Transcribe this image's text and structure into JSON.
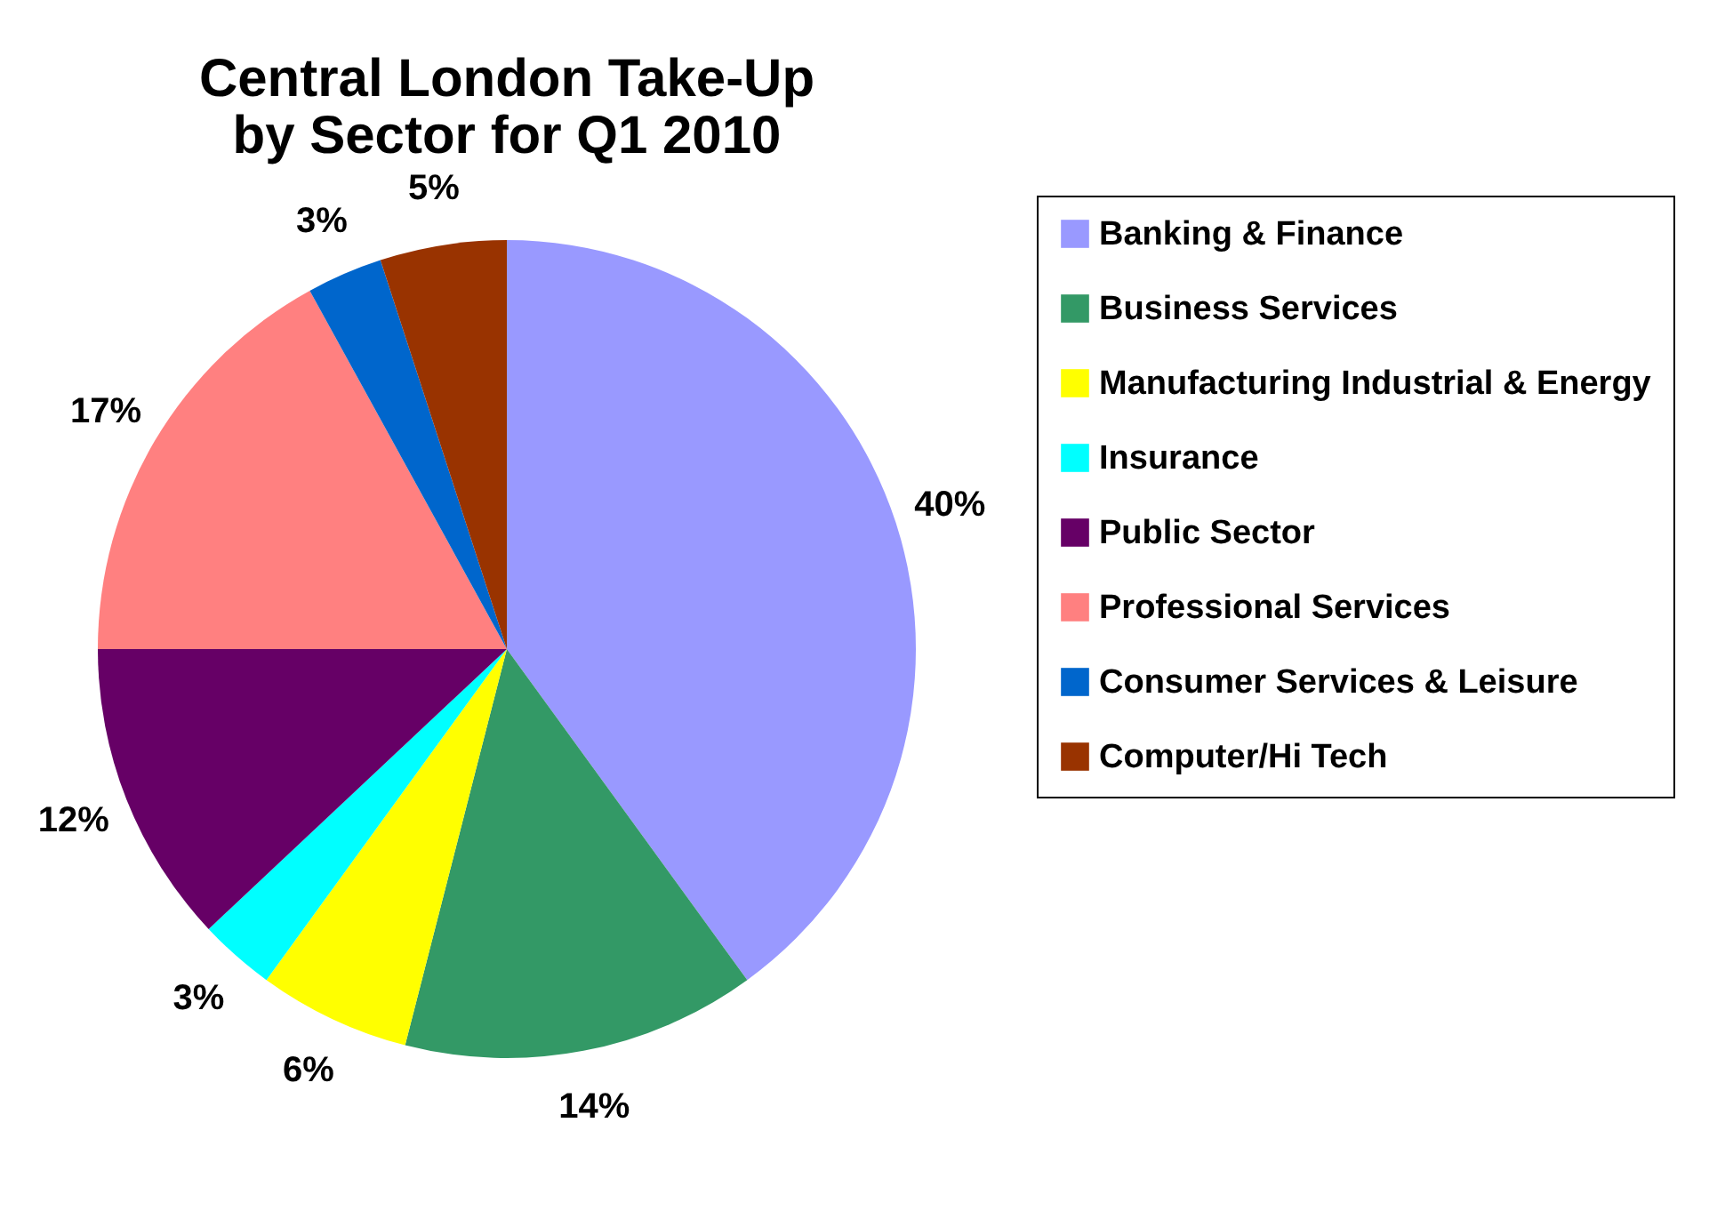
{
  "chart_data": {
    "type": "pie",
    "title": "Central London Take-Up by Sector for Q1 2010",
    "categories": [
      "Banking & Finance",
      "Business Services",
      "Manufacturing Industrial & Energy",
      "Insurance",
      "Public Sector",
      "Professional Services",
      "Consumer Services & Leisure",
      "Computer/Hi Tech"
    ],
    "values": [
      40,
      14,
      6,
      3,
      12,
      17,
      3,
      5
    ],
    "colors": [
      "#9999ff",
      "#339966",
      "#ffff00",
      "#00ffff",
      "#660066",
      "#ff8080",
      "#0066cc",
      "#993300"
    ],
    "value_labels": [
      "40%",
      "14%",
      "6%",
      "3%",
      "12%",
      "17%",
      "3%",
      "5%"
    ],
    "legend": "right"
  }
}
